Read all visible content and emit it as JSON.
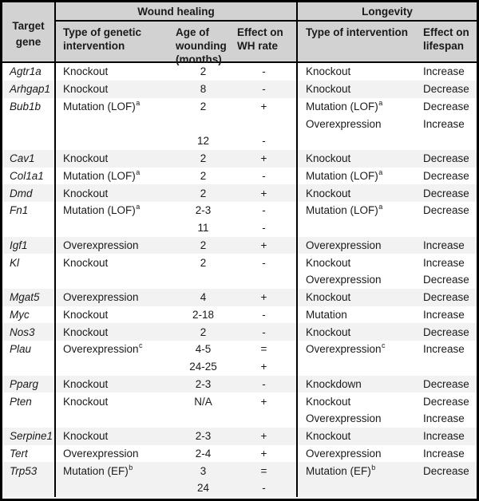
{
  "colors": {
    "border": "#000000",
    "header_bg": "#d2d2d2",
    "row_alt_bg": "#f2f2f2",
    "text": "#1a1a1a"
  },
  "header": {
    "target_gene": "Target gene",
    "wound_healing": "Wound healing",
    "longevity": "Longevity",
    "wh_subcols": [
      "Type of genetic intervention",
      "Age of wounding (months)",
      "Effect on WH rate"
    ],
    "longevity_subcols": [
      "Type of intervention",
      "Effect on lifespan"
    ]
  },
  "rows": [
    {
      "gene": "Agtr1a",
      "lines": [
        {
          "wh_type": "Knockout",
          "age": "2",
          "wh_effect": "-",
          "lg_type": "Knockout",
          "lifespan": "Increase"
        }
      ]
    },
    {
      "gene": "Arhgap1",
      "lines": [
        {
          "wh_type": "Knockout",
          "age": "8",
          "wh_effect": "-",
          "lg_type": "Knockout",
          "lifespan": "Decrease"
        }
      ]
    },
    {
      "gene": "Bub1b",
      "lines": [
        {
          "wh_type": "Mutation (LOF)",
          "wh_sup": "a",
          "age": "2",
          "wh_effect": "+",
          "lg_type": "Mutation (LOF)",
          "lg_sup": "a",
          "lifespan": "Decrease"
        },
        {
          "lg_type": "Overexpression",
          "lifespan": "Increase"
        },
        {
          "age": "12",
          "wh_effect": "-"
        }
      ]
    },
    {
      "gene": "Cav1",
      "lines": [
        {
          "wh_type": "Knockout",
          "age": "2",
          "wh_effect": "+",
          "lg_type": "Knockout",
          "lifespan": "Decrease"
        }
      ]
    },
    {
      "gene": "Col1a1",
      "lines": [
        {
          "wh_type": "Mutation (LOF)",
          "wh_sup": "a",
          "age": "2",
          "wh_effect": "-",
          "lg_type": "Mutation (LOF)",
          "lg_sup": "a",
          "lifespan": "Decrease"
        }
      ]
    },
    {
      "gene": "Dmd",
      "lines": [
        {
          "wh_type": "Knockout",
          "age": "2",
          "wh_effect": "+",
          "lg_type": "Knockout",
          "lifespan": "Decrease"
        }
      ]
    },
    {
      "gene": "Fn1",
      "lines": [
        {
          "wh_type": "Mutation (LOF)",
          "wh_sup": "a",
          "age": "2-3",
          "wh_effect": "-",
          "lg_type": "Mutation (LOF)",
          "lg_sup": "a",
          "lifespan": "Decrease"
        },
        {
          "age": "11",
          "wh_effect": "-"
        }
      ]
    },
    {
      "gene": "Igf1",
      "lines": [
        {
          "wh_type": "Overexpression",
          "age": "2",
          "wh_effect": "+",
          "lg_type": "Overexpression",
          "lifespan": "Increase"
        }
      ]
    },
    {
      "gene": "Kl",
      "lines": [
        {
          "wh_type": "Knockout",
          "age": "2",
          "wh_effect": "-",
          "lg_type": "Knockout",
          "lifespan": "Increase"
        },
        {
          "lg_type": "Overexpression",
          "lifespan": "Decrease"
        }
      ]
    },
    {
      "gene": "Mgat5",
      "lines": [
        {
          "wh_type": "Overexpression",
          "age": "4",
          "wh_effect": "+",
          "lg_type": "Knockout",
          "lifespan": "Decrease"
        }
      ]
    },
    {
      "gene": "Myc",
      "lines": [
        {
          "wh_type": "Knockout",
          "age": "2-18",
          "wh_effect": "-",
          "lg_type": "Mutation",
          "lifespan": "Increase"
        }
      ]
    },
    {
      "gene": "Nos3",
      "lines": [
        {
          "wh_type": "Knockout",
          "age": "2",
          "wh_effect": "-",
          "lg_type": "Knockout",
          "lifespan": "Decrease"
        }
      ]
    },
    {
      "gene": "Plau",
      "lines": [
        {
          "wh_type": "Overexpression",
          "wh_sup": "c",
          "age": "4-5",
          "wh_effect": "=",
          "lg_type": "Overexpression",
          "lg_sup": "c",
          "lifespan": "Increase"
        },
        {
          "age": "24-25",
          "wh_effect": "+"
        }
      ]
    },
    {
      "gene": "Pparg",
      "lines": [
        {
          "wh_type": "Knockout",
          "age": "2-3",
          "wh_effect": "-",
          "lg_type": "Knockdown",
          "lifespan": "Decrease"
        }
      ]
    },
    {
      "gene": "Pten",
      "lines": [
        {
          "wh_type": "Knockout",
          "age": "N/A",
          "wh_effect": "+",
          "lg_type": "Knockout",
          "lifespan": "Decrease"
        },
        {
          "lg_type": "Overexpression",
          "lifespan": "Increase"
        }
      ]
    },
    {
      "gene": "Serpine1",
      "lines": [
        {
          "wh_type": "Knockout",
          "age": "2-3",
          "wh_effect": "+",
          "lg_type": "Knockout",
          "lifespan": "Increase"
        }
      ]
    },
    {
      "gene": "Tert",
      "lines": [
        {
          "wh_type": "Overexpression",
          "age": "2-4",
          "wh_effect": "+",
          "lg_type": "Overexpression",
          "lifespan": "Increase"
        }
      ]
    },
    {
      "gene": "Trp53",
      "lines": [
        {
          "wh_type": "Mutation (EF)",
          "wh_sup": "b",
          "age": "3",
          "wh_effect": "=",
          "lg_type": "Mutation (EF)",
          "lg_sup": "b",
          "lifespan": "Decrease"
        },
        {
          "age": "24",
          "wh_effect": "-"
        }
      ]
    }
  ]
}
